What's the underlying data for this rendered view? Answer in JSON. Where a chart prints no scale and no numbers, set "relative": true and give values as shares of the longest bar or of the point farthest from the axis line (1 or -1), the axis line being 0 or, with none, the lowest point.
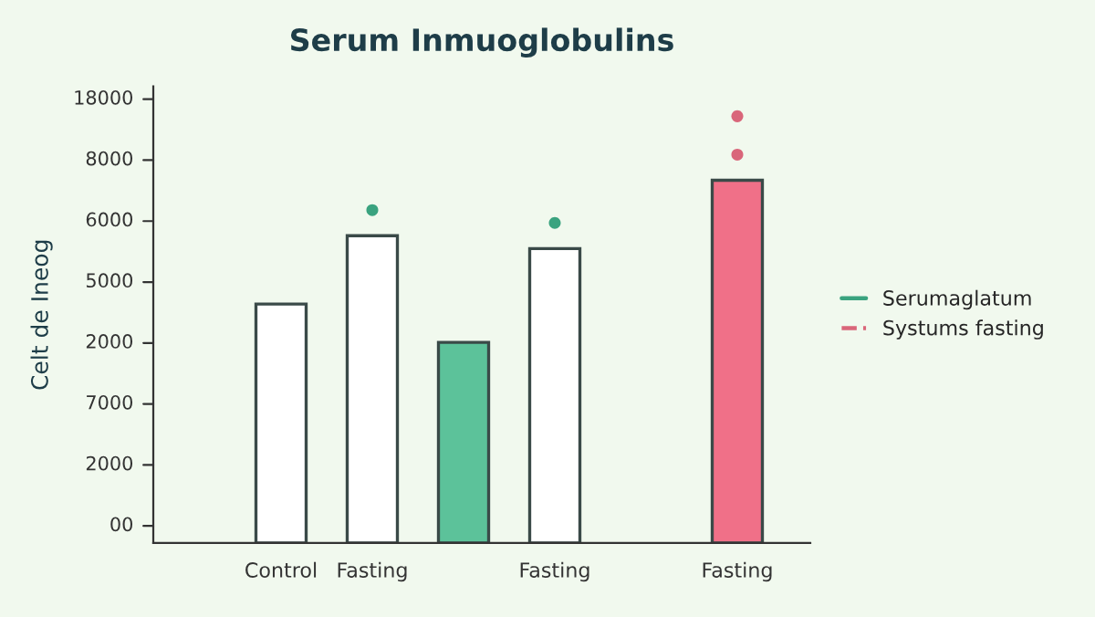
{
  "chart_data": {
    "type": "bar",
    "title": "Serum Inmuoglobulins",
    "relative": true,
    "categories": [
      "Control",
      "Fasting",
      null,
      "Fasting",
      null,
      "Fasting"
    ],
    "series": [
      {
        "colors": [
          "#ffffff",
          "#ffffff",
          "#5cc29a",
          "#ffffff",
          null,
          "#f07088"
        ],
        "values": [
          0.56,
          0.72,
          0.47,
          0.69,
          null,
          0.85
        ]
      },
      {
        "type": "scatter",
        "name": "Serumaglatum",
        "color": "#3aa37f",
        "values": [
          null,
          0.78,
          null,
          0.75,
          null,
          null
        ]
      },
      {
        "type": "scatter",
        "name": "Systums fasting",
        "color": "#d9667a",
        "line_style": "dashed",
        "values": [
          null,
          null,
          null,
          null,
          null,
          1
        ]
      },
      {
        "type": "scatter",
        "color": "#d9667a",
        "values": [
          null,
          null,
          null,
          null,
          null,
          0.91
        ]
      }
    ],
    "annotations": [
      "Celt de Ineog",
      "00",
      "2000",
      "7000",
      "2000",
      "5000",
      "6000",
      "8000",
      "18000"
    ],
    "grid": false,
    "legend": "right",
    "marker": "circle"
  }
}
